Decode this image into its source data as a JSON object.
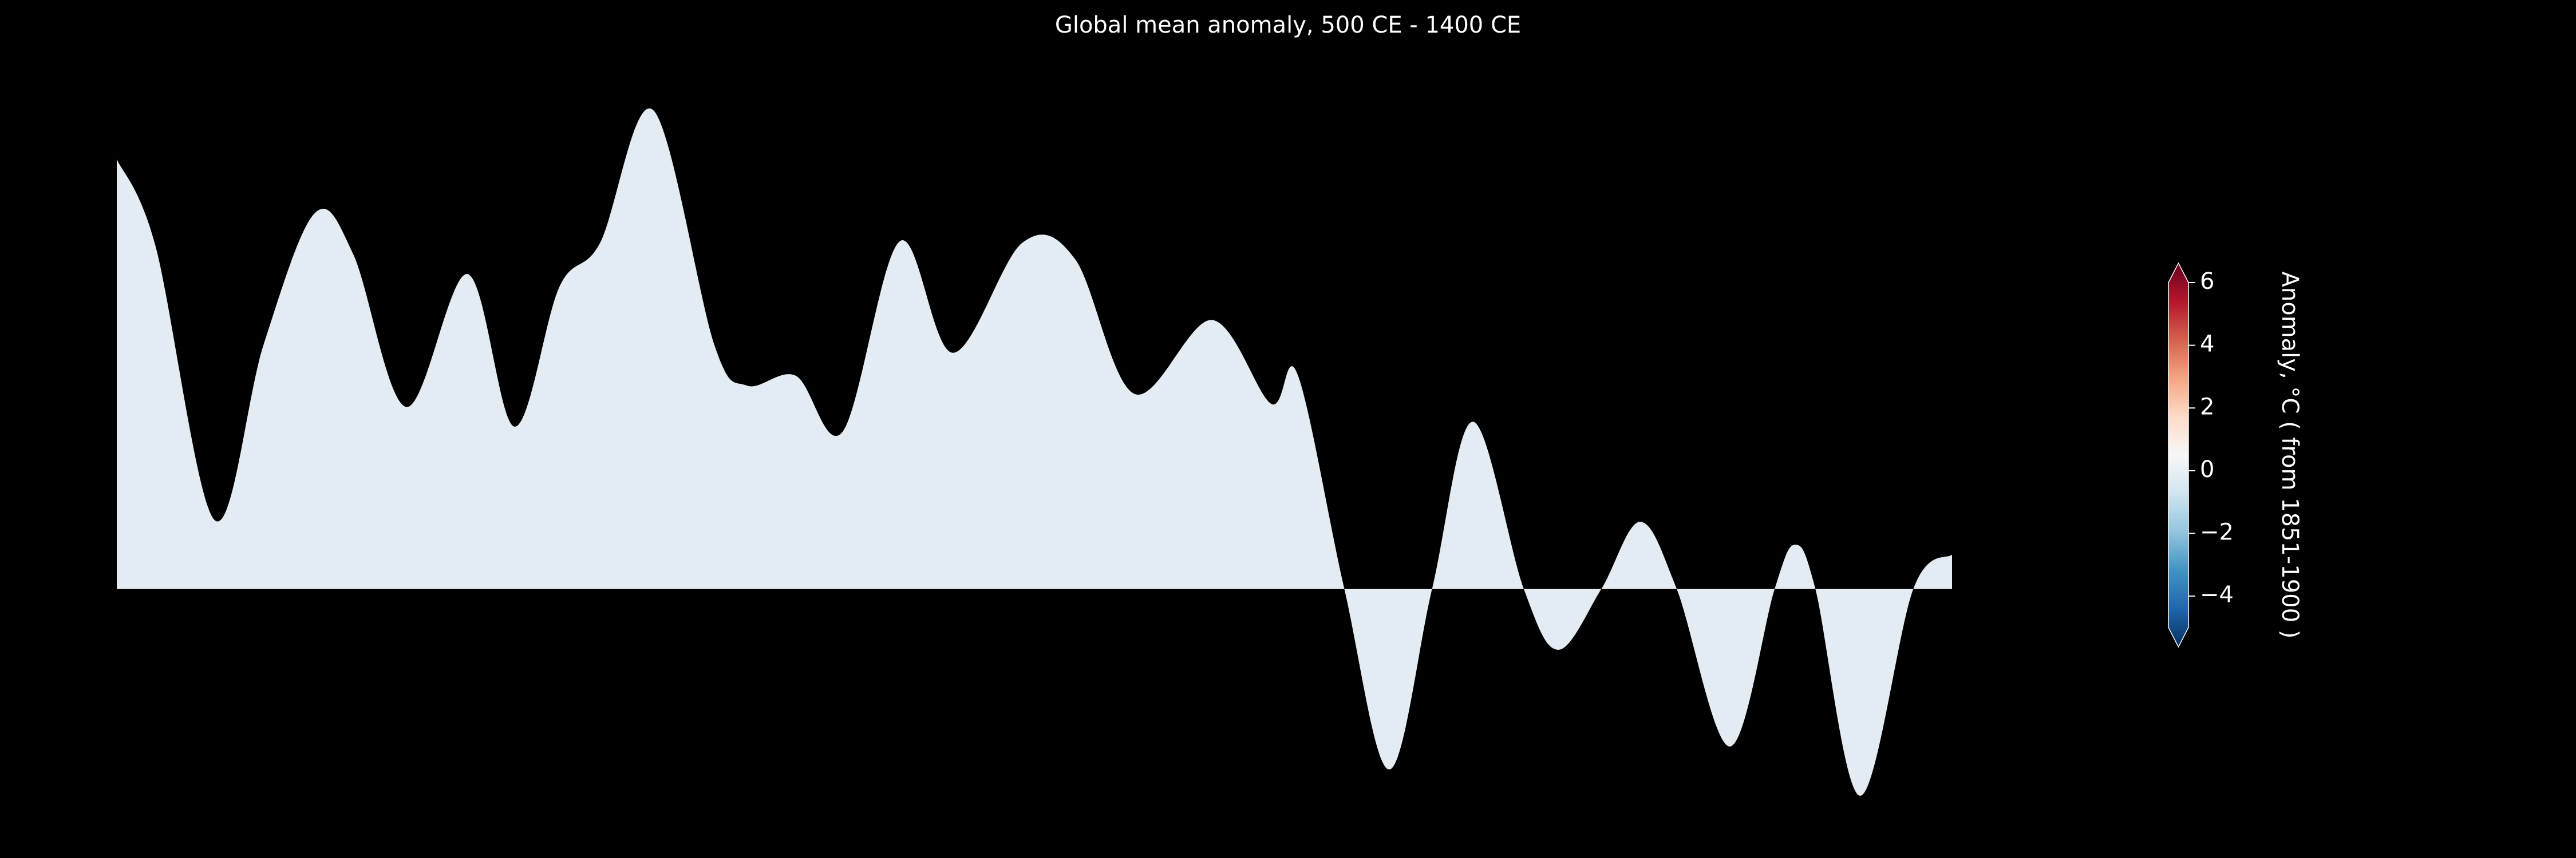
{
  "chart_data": {
    "type": "area",
    "title": "Global mean anomaly, 500 CE - 1400 CE",
    "x": [
      500,
      519,
      548,
      572,
      597,
      616,
      642,
      672,
      695,
      717,
      737,
      763,
      793,
      809,
      833,
      856,
      884,
      910,
      944,
      970,
      999,
      1037,
      1066,
      1079,
      1102,
      1124,
      1145,
      1165,
      1190,
      1207,
      1228,
      1247,
      1265,
      1291,
      1313,
      1323,
      1333,
      1355,
      1381,
      1400
    ],
    "values": [
      0.262,
      0.209,
      0.042,
      0.149,
      0.229,
      0.204,
      0.111,
      0.192,
      0.099,
      0.184,
      0.211,
      0.292,
      0.149,
      0.124,
      0.13,
      0.096,
      0.212,
      0.144,
      0.211,
      0.201,
      0.119,
      0.164,
      0.113,
      0.131,
      0.0,
      -0.11,
      0.0,
      0.102,
      0.0,
      -0.037,
      0.0,
      0.041,
      0.0,
      -0.096,
      0.0,
      0.027,
      0.0,
      -0.126,
      0.0,
      0.021
    ],
    "color": "#e4ecf3",
    "xlim": [
      500,
      1400
    ],
    "ylim": [
      -0.15,
      0.32
    ],
    "colorbar": {
      "label": "Anomaly, °C ( from 1851-1900 )",
      "lim": [
        -5,
        6
      ],
      "ticks": [
        {
          "value": -4,
          "label": "−4"
        },
        {
          "value": -2,
          "label": "−2"
        },
        0,
        2,
        4,
        6
      ],
      "colors": [
        "#053061",
        "#2166ac",
        "#4393c3",
        "#92c5de",
        "#d1e5f0",
        "#f7f7f7",
        "#fddbc7",
        "#f4a582",
        "#d6604d",
        "#b2182b",
        "#67001f"
      ]
    }
  }
}
